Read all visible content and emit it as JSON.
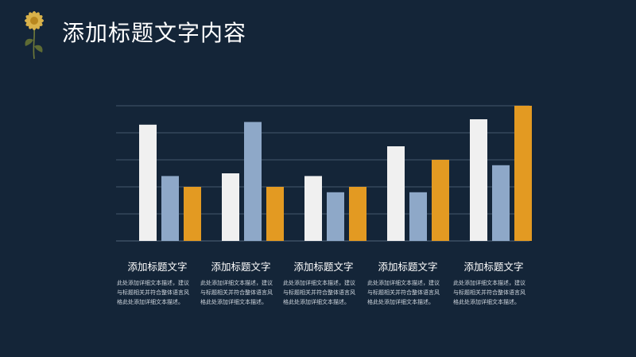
{
  "header": {
    "title": "添加标题文字内容",
    "logo_icon": "chrysanthemum-flower-icon"
  },
  "colors": {
    "background": "#142538",
    "grid": "#44576b",
    "series_colors": [
      "#f0f0f0",
      "#8ea8c8",
      "#e39a22"
    ]
  },
  "chart_data": {
    "type": "bar",
    "categories": [
      "",
      "",
      "",
      "",
      ""
    ],
    "series": [
      {
        "values": [
          4.3,
          2.5,
          2.4,
          3.5,
          4.5
        ]
      },
      {
        "values": [
          2.4,
          4.4,
          1.8,
          1.8,
          2.8
        ]
      },
      {
        "values": [
          2.0,
          2.0,
          2.0,
          3.0,
          5.0
        ]
      }
    ],
    "ylim": [
      0,
      5
    ],
    "ytick_step": 1,
    "grid": true,
    "legend": "none"
  },
  "descriptions": [
    {
      "title": "添加标题文字",
      "body": "此处添加详细文本描述，建议与标题相关并符合整体语言风格此处添加详细文本描述。"
    },
    {
      "title": "添加标题文字",
      "body": "此处添加详细文本描述，建议与标题相关并符合整体语言风格此处添加详细文本描述。"
    },
    {
      "title": "添加标题文字",
      "body": "此处添加详细文本描述，建议与标题相关并符合整体语言风格此处添加详细文本描述。"
    },
    {
      "title": "添加标题文字",
      "body": "此处添加详细文本描述，建议与标题相关并符合整体语言风格此处添加详细文本描述。"
    },
    {
      "title": "添加标题文字",
      "body": "此处添加详细文本描述，建议与标题相关并符合整体语言风格此处添加详细文本描述。"
    }
  ]
}
